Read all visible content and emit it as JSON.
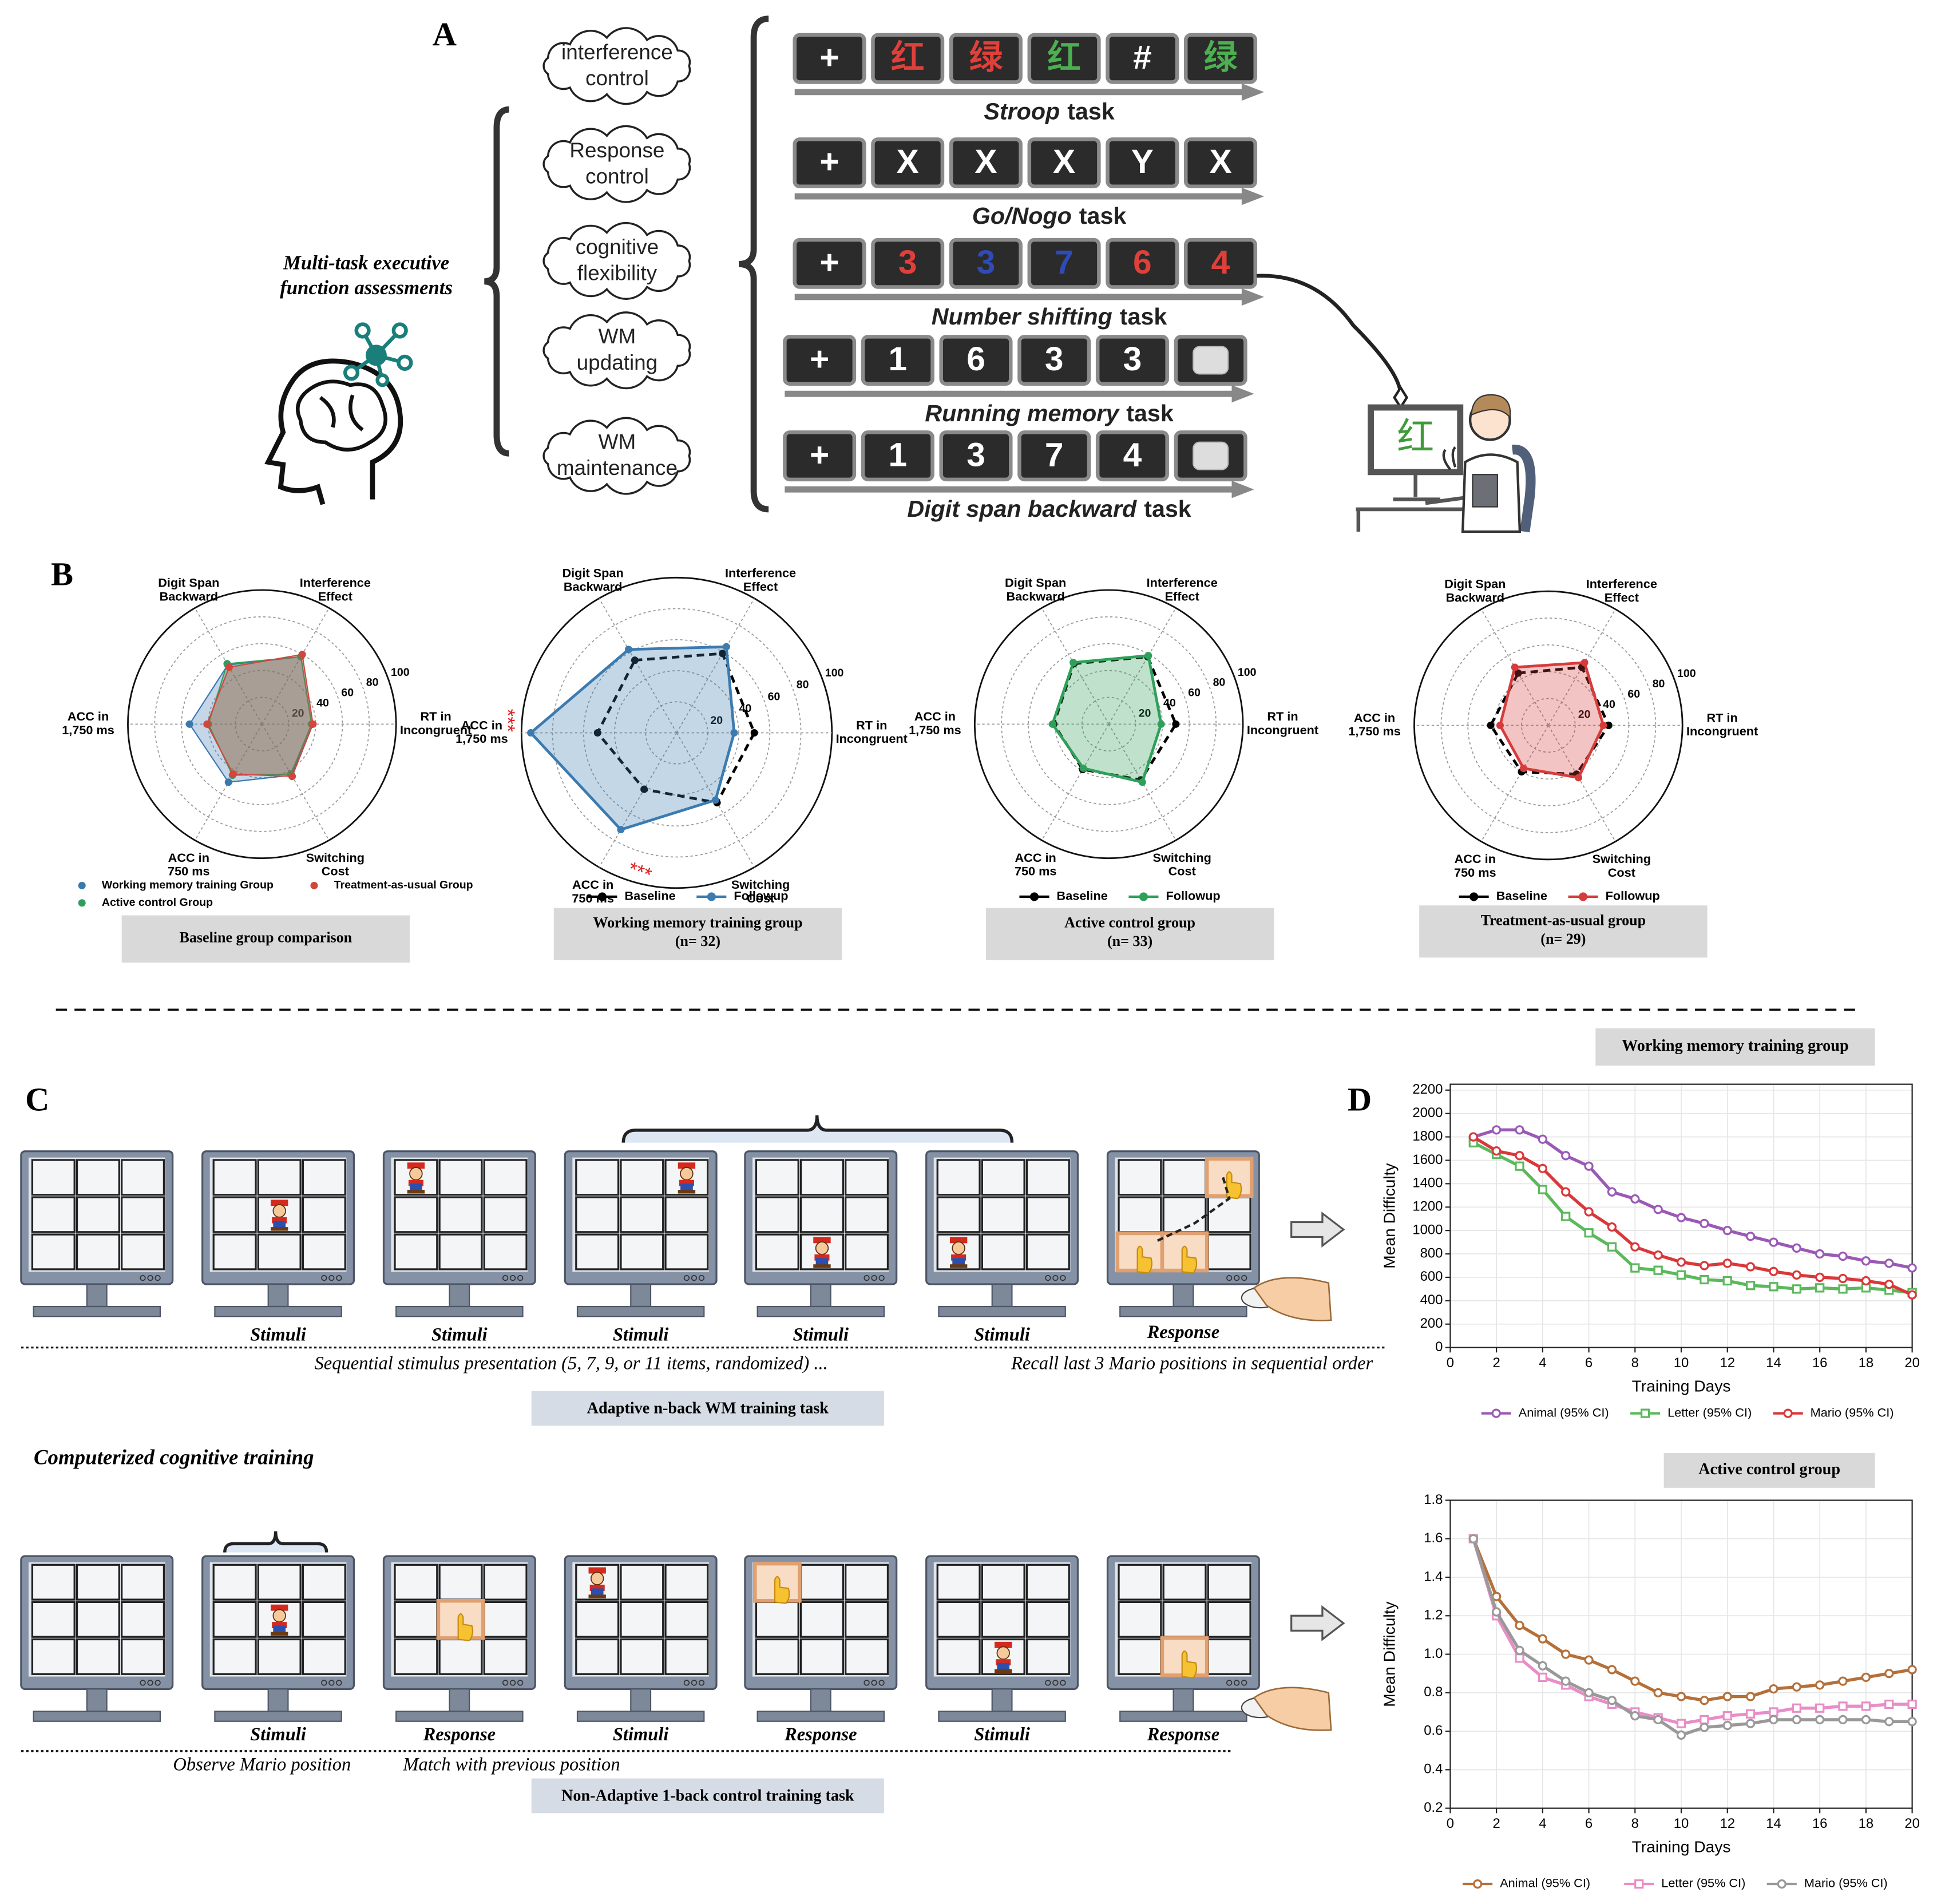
{
  "panel_a": {
    "label": "A",
    "heading": [
      "Multi-task executive",
      "function assessments"
    ],
    "domains": [
      [
        "interference",
        "control"
      ],
      [
        "Response",
        "control"
      ],
      [
        "cognitive",
        "flexibility"
      ],
      [
        "WM",
        "updating"
      ],
      [
        "WM",
        "maintenance"
      ]
    ],
    "tasks": [
      {
        "name": "Stroop",
        "suffix": "task",
        "stimuli": [
          {
            "text": "+",
            "color": "#ffffff"
          },
          {
            "text": "红",
            "color": "#e0403a"
          },
          {
            "text": "绿",
            "color": "#e0403a"
          },
          {
            "text": "红",
            "color": "#4caf50"
          },
          {
            "text": "#",
            "color": "#ffffff"
          },
          {
            "text": "绿",
            "color": "#4caf50"
          }
        ]
      },
      {
        "name": "Go/Nogo",
        "suffix": "task",
        "stimuli": [
          {
            "text": "+",
            "color": "#ffffff"
          },
          {
            "text": "X",
            "color": "#ffffff"
          },
          {
            "text": "X",
            "color": "#ffffff"
          },
          {
            "text": "X",
            "color": "#ffffff"
          },
          {
            "text": "Y",
            "color": "#ffffff"
          },
          {
            "text": "X",
            "color": "#ffffff"
          }
        ]
      },
      {
        "name": "Number shifting",
        "suffix": "task",
        "stimuli": [
          {
            "text": "+",
            "color": "#ffffff"
          },
          {
            "text": "3",
            "color": "#e0403a"
          },
          {
            "text": "3",
            "color": "#2f4bb5"
          },
          {
            "text": "7",
            "color": "#2f4bb5"
          },
          {
            "text": "6",
            "color": "#e0403a"
          },
          {
            "text": "4",
            "color": "#e0403a"
          }
        ]
      },
      {
        "name": "Running memory",
        "suffix": "task",
        "stimuli": [
          {
            "text": "+",
            "color": "#ffffff"
          },
          {
            "text": "1",
            "color": "#ffffff"
          },
          {
            "text": "6",
            "color": "#ffffff"
          },
          {
            "text": "3",
            "color": "#ffffff"
          },
          {
            "text": "3",
            "color": "#ffffff"
          },
          {
            "text": null,
            "color": "#dddddd"
          }
        ]
      },
      {
        "name": "Digit span backward",
        "suffix": "task",
        "stimuli": [
          {
            "text": "+",
            "color": "#ffffff"
          },
          {
            "text": "1",
            "color": "#ffffff"
          },
          {
            "text": "3",
            "color": "#ffffff"
          },
          {
            "text": "7",
            "color": "#ffffff"
          },
          {
            "text": "4",
            "color": "#ffffff"
          },
          {
            "text": null,
            "color": "#dddddd"
          }
        ]
      }
    ],
    "screen_char": "红"
  },
  "panel_b": {
    "label": "B"
  },
  "panel_c": {
    "label": "C",
    "training_label": "Computerized cognitive training",
    "adaptive": {
      "captions": [
        "Stimuli",
        "Stimuli",
        "Stimuli",
        "Stimuli",
        "Stimuli",
        "Response"
      ],
      "notes": [
        "Sequential stimulus presentation (5, 7, 9, or 11 items, randomized) ...",
        "Recall last 3 Mario positions in sequential order"
      ],
      "task": "Adaptive n-back WM training task"
    },
    "control": {
      "captions": [
        "Stimuli",
        "Response",
        "Stimuli",
        "Response",
        "Stimuli",
        "Response"
      ],
      "notes": [
        "Observe Mario position",
        "Match with previous position"
      ],
      "task": "Non-Adaptive 1-back control training task"
    }
  },
  "panel_d": {
    "label": "D"
  },
  "chart_data": [
    {
      "type": "radar",
      "title": "Baseline group comparison",
      "axes": [
        [
          "Digit Span",
          "Backward"
        ],
        [
          "Interference",
          "Effect"
        ],
        [
          "RT in",
          "Incongruent"
        ],
        [
          "Switching",
          "Cost"
        ],
        [
          "ACC in",
          "750 ms"
        ],
        [
          "ACC in",
          "1,750 ms"
        ]
      ],
      "rlim": [
        0,
        100
      ],
      "rticks": [
        20,
        40,
        60,
        80,
        100
      ],
      "series": [
        {
          "name": "Working memory training Group",
          "color": "#3a78b0",
          "values": [
            51,
            58,
            37,
            44,
            50,
            54
          ],
          "linestyle": "solid",
          "fill": true
        },
        {
          "name": "Active control Group",
          "color": "#2e9e5e",
          "values": [
            52,
            58,
            37,
            43,
            44,
            40
          ],
          "linestyle": "solid",
          "fill": true
        },
        {
          "name": "Treatment-as-usual Group",
          "color": "#d2463c",
          "values": [
            49,
            60,
            38,
            45,
            43,
            41
          ],
          "linestyle": "solid",
          "fill": true
        }
      ]
    },
    {
      "type": "radar",
      "title": "Working memory training group",
      "subtitle": "(n= 32)",
      "axes": [
        [
          "Digit Span",
          "Backward"
        ],
        [
          "Interference",
          "Effect"
        ],
        [
          "RT in",
          "Incongruent"
        ],
        [
          "Switching",
          "Cost"
        ],
        [
          "ACC in",
          "750 ms"
        ],
        [
          "ACC in",
          "1,750 ms"
        ]
      ],
      "rlim": [
        0,
        100
      ],
      "rticks": [
        20,
        40,
        60,
        80,
        100
      ],
      "series": [
        {
          "name": "Baseline",
          "color": "#000000",
          "values": [
            54,
            59,
            50,
            52,
            42,
            51
          ],
          "linestyle": "dashed",
          "fill": false
        },
        {
          "name": "Followup",
          "color": "#3b7bb0",
          "values": [
            62,
            64,
            37,
            50,
            72,
            94
          ],
          "linestyle": "solid",
          "fill": true
        }
      ],
      "annotations": [
        "***",
        "***"
      ]
    },
    {
      "type": "radar",
      "title": "Active control group",
      "subtitle": "(n= 33)",
      "axes": [
        [
          "Digit Span",
          "Backward"
        ],
        [
          "Interference",
          "Effect"
        ],
        [
          "RT in",
          "Incongruent"
        ],
        [
          "Switching",
          "Cost"
        ],
        [
          "ACC in",
          "750 ms"
        ],
        [
          "ACC in",
          "1,750 ms"
        ]
      ],
      "rlim": [
        0,
        100
      ],
      "rticks": [
        20,
        40,
        60,
        80,
        100
      ],
      "series": [
        {
          "name": "Baseline",
          "color": "#000000",
          "values": [
            52,
            58,
            50,
            48,
            39,
            41
          ],
          "linestyle": "dashed",
          "fill": false
        },
        {
          "name": "Followup",
          "color": "#2ea05a",
          "values": [
            53,
            59,
            39,
            50,
            38,
            42
          ],
          "linestyle": "solid",
          "fill": true
        }
      ]
    },
    {
      "type": "radar",
      "title": "Treatment-as-usual group",
      "subtitle": "(n= 29)",
      "axes": [
        [
          "Digit Span",
          "Backward"
        ],
        [
          "Interference",
          "Effect"
        ],
        [
          "RT in",
          "Incongruent"
        ],
        [
          "Switching",
          "Cost"
        ],
        [
          "ACC in",
          "750 ms"
        ],
        [
          "ACC in",
          "1,750 ms"
        ]
      ],
      "rlim": [
        0,
        100
      ],
      "rticks": [
        20,
        40,
        60,
        80,
        100
      ],
      "series": [
        {
          "name": "Baseline",
          "color": "#000000",
          "values": [
            45,
            50,
            45,
            42,
            40,
            43
          ],
          "linestyle": "dashed",
          "fill": false
        },
        {
          "name": "Followup",
          "color": "#d63c3c",
          "values": [
            50,
            54,
            41,
            45,
            37,
            36
          ],
          "linestyle": "solid",
          "fill": true
        }
      ]
    },
    {
      "type": "line",
      "title": "Working memory training group",
      "xlabel": "Training Days",
      "ylabel": "Mean Difficulty",
      "x": [
        1,
        2,
        3,
        4,
        5,
        6,
        7,
        8,
        9,
        10,
        11,
        12,
        13,
        14,
        15,
        16,
        17,
        18,
        19,
        20
      ],
      "xlim": [
        0,
        20
      ],
      "xticks": [
        0,
        2,
        4,
        6,
        8,
        10,
        12,
        14,
        16,
        18,
        20
      ],
      "ylim": [
        0,
        2250
      ],
      "yticks": [
        0,
        200,
        400,
        600,
        800,
        1000,
        1200,
        1400,
        1600,
        1800,
        2000,
        2200
      ],
      "grid": true,
      "series": [
        {
          "name": "Animal (95% CI)",
          "color": "#9b59b6",
          "values": [
            1800,
            1860,
            1860,
            1780,
            1640,
            1550,
            1330,
            1270,
            1180,
            1110,
            1060,
            1000,
            950,
            900,
            850,
            800,
            780,
            740,
            720,
            680
          ]
        },
        {
          "name": "Letter (95% CI)",
          "color": "#5cb85c",
          "values": [
            1750,
            1650,
            1550,
            1350,
            1120,
            980,
            860,
            680,
            660,
            620,
            580,
            570,
            530,
            520,
            500,
            510,
            500,
            510,
            490,
            470
          ]
        },
        {
          "name": "Mario (95% CI)",
          "color": "#d9383a",
          "values": [
            1800,
            1680,
            1640,
            1530,
            1330,
            1160,
            1030,
            860,
            790,
            730,
            700,
            720,
            690,
            650,
            620,
            600,
            590,
            570,
            540,
            450
          ]
        }
      ]
    },
    {
      "type": "line",
      "title": "Active control group",
      "xlabel": "Training Days",
      "ylabel": "Mean Difficulty",
      "x": [
        1,
        2,
        3,
        4,
        5,
        6,
        7,
        8,
        9,
        10,
        11,
        12,
        13,
        14,
        15,
        16,
        17,
        18,
        19,
        20
      ],
      "xlim": [
        0,
        20
      ],
      "xticks": [
        0,
        2,
        4,
        6,
        8,
        10,
        12,
        14,
        16,
        18,
        20
      ],
      "ylim": [
        0.2,
        1.8
      ],
      "yticks": [
        0.2,
        0.4,
        0.6,
        0.8,
        {
          "value": 1,
          "label": "1.0"
        },
        1.2,
        1.4,
        1.6,
        1.8
      ],
      "grid": true,
      "series": [
        {
          "name": "Animal (95% CI)",
          "color": "#b5703a",
          "values": [
            1.6,
            1.3,
            1.15,
            1.08,
            1.0,
            0.97,
            0.92,
            0.86,
            0.8,
            0.78,
            0.76,
            0.78,
            0.78,
            0.82,
            0.83,
            0.84,
            0.86,
            0.88,
            0.9,
            0.92
          ]
        },
        {
          "name": "Letter (95% CI)",
          "color": "#e88dc7",
          "values": [
            1.6,
            1.2,
            0.98,
            0.88,
            0.84,
            0.78,
            0.74,
            0.7,
            0.67,
            0.64,
            0.66,
            0.68,
            0.69,
            0.7,
            0.72,
            0.72,
            0.73,
            0.73,
            0.74,
            0.74
          ]
        },
        {
          "name": "Mario (95% CI)",
          "color": "#999999",
          "values": [
            1.6,
            1.22,
            1.02,
            0.94,
            0.86,
            0.8,
            0.76,
            0.68,
            0.66,
            0.58,
            0.62,
            0.63,
            0.64,
            0.66,
            0.66,
            0.66,
            0.66,
            0.66,
            0.65,
            0.65
          ]
        }
      ]
    }
  ]
}
